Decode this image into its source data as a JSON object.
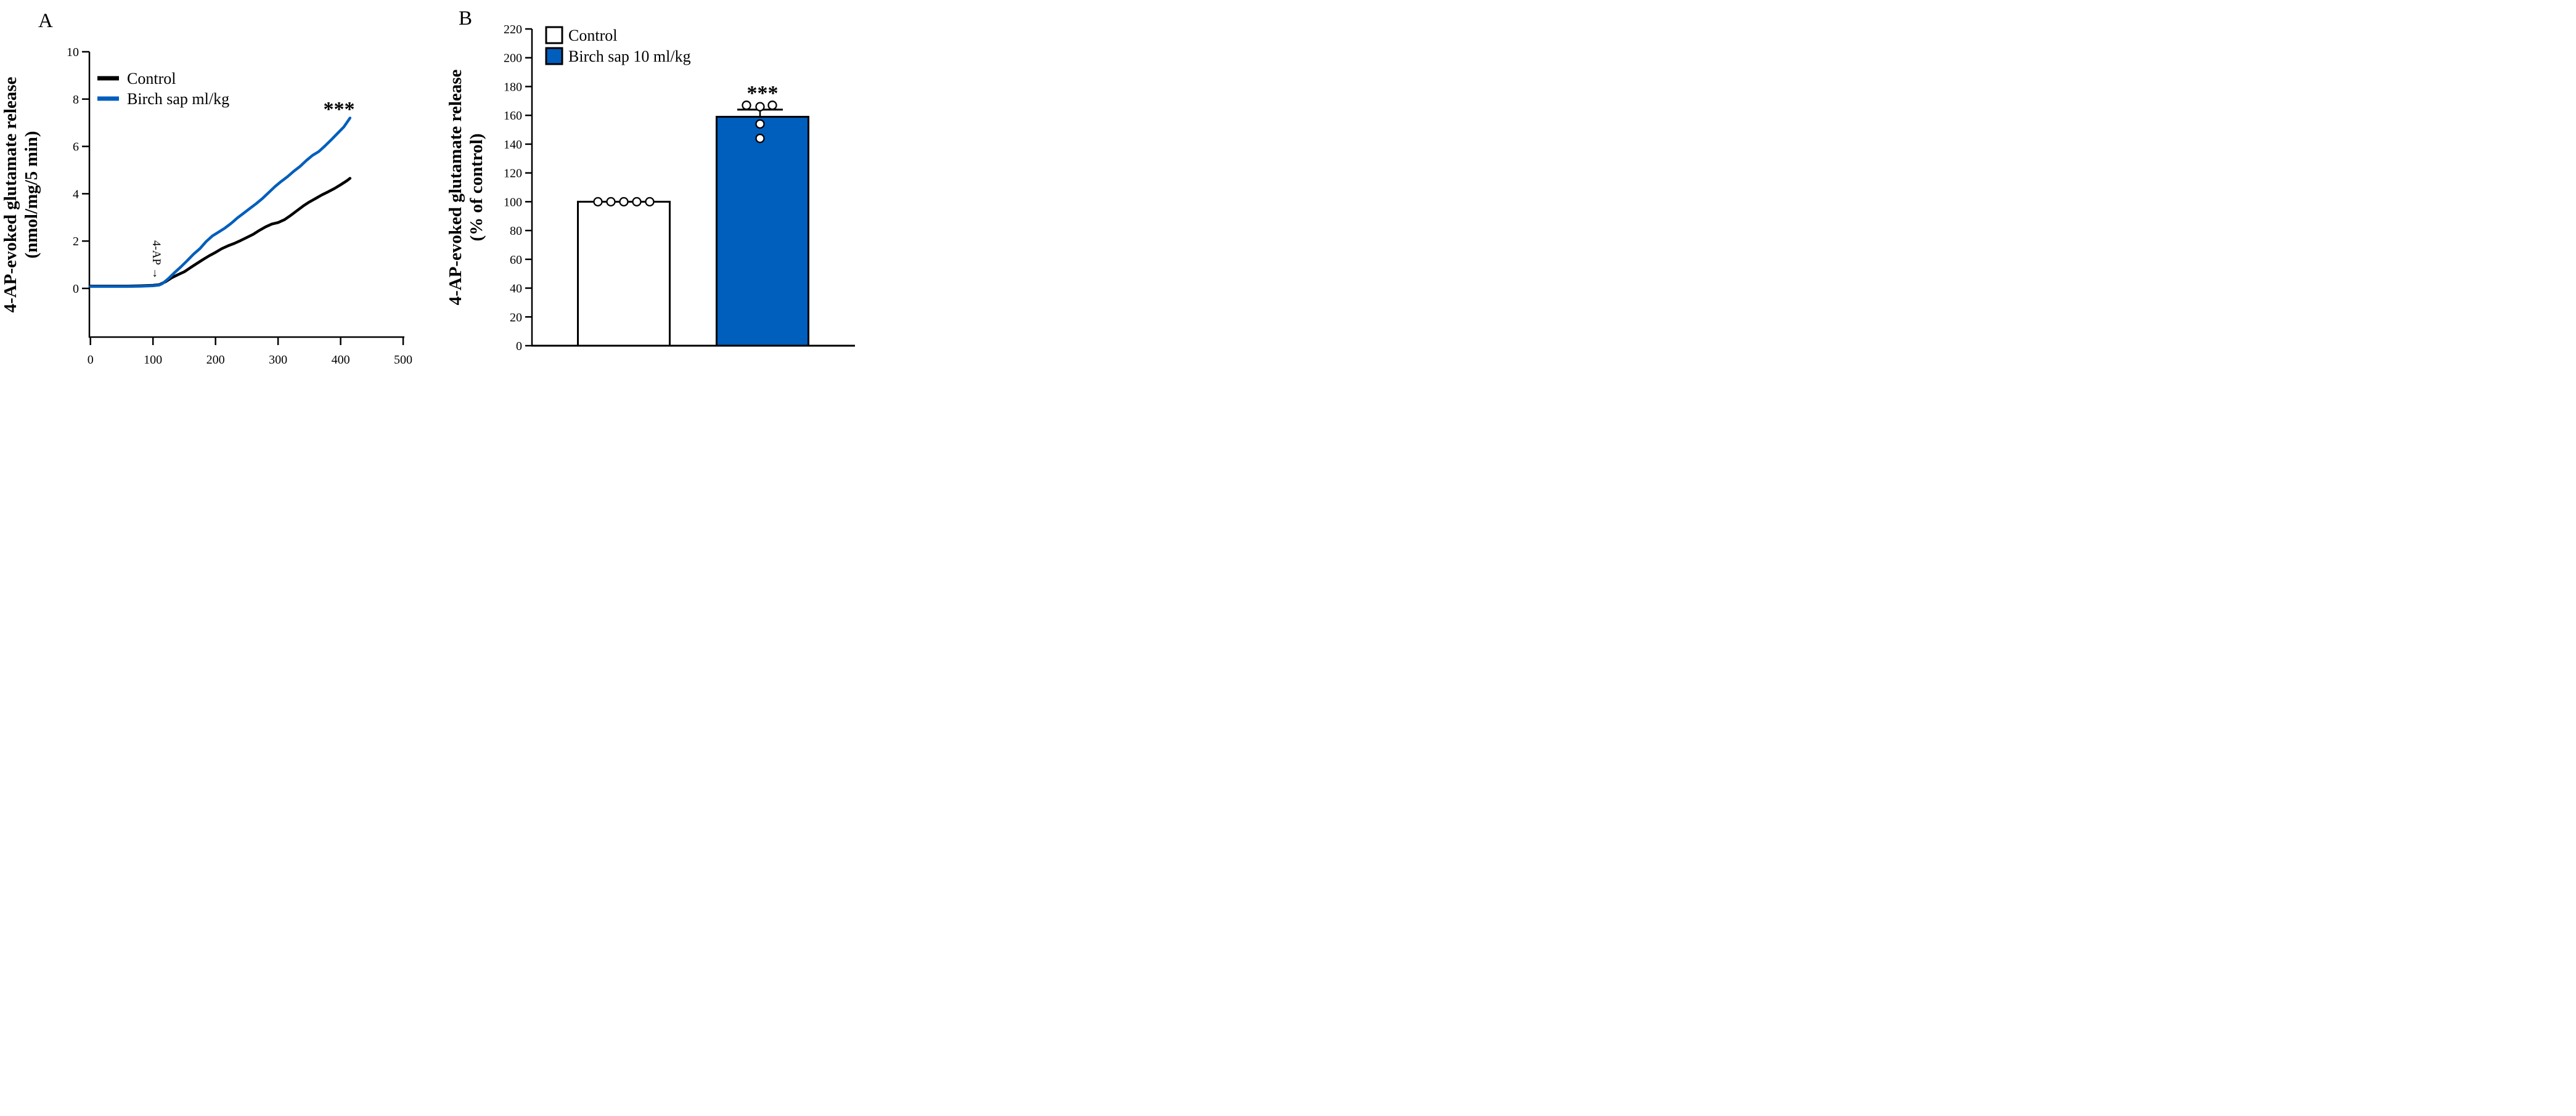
{
  "panel_a": {
    "letter": "A",
    "ylabel_line1": "4-AP-evoked glutamate release",
    "ylabel_line2": "(nmol/mg/5 min)",
    "annotation_4ap": "4-AP →",
    "significance": "***"
  },
  "panel_b": {
    "letter": "B",
    "ylabel_line1": "4-AP-evoked glutamate release",
    "ylabel_line2": "(% of control)",
    "significance": "***"
  },
  "chart_data": [
    {
      "type": "line",
      "panel": "A",
      "ylabel": "4-AP-evoked glutamate release (nmol/mg/5 min)",
      "xlabel": "",
      "xlim": [
        0,
        500
      ],
      "ylim": [
        0,
        10
      ],
      "xticks": [
        0,
        100,
        200,
        300,
        400,
        500
      ],
      "yticks": [
        0,
        2,
        4,
        6,
        8,
        10
      ],
      "grid": false,
      "legend_position": "inside top-left",
      "annotations": [
        {
          "text": "4-AP →",
          "x": 105,
          "y_top": 2.2,
          "arrow": "down",
          "rotated": true
        },
        {
          "text": "***",
          "x": 400,
          "y": 7.7
        }
      ],
      "series": [
        {
          "name": "Control",
          "color": "#000000",
          "x": [
            0,
            20,
            40,
            60,
            80,
            100,
            110,
            120,
            130,
            140,
            150,
            160,
            170,
            180,
            190,
            200,
            210,
            220,
            230,
            240,
            250,
            260,
            270,
            280,
            290,
            300,
            310,
            320,
            330,
            340,
            350,
            360,
            370,
            380,
            390,
            400,
            410,
            415
          ],
          "y": [
            0.1,
            0.1,
            0.1,
            0.1,
            0.11,
            0.13,
            0.16,
            0.28,
            0.45,
            0.58,
            0.7,
            0.88,
            1.05,
            1.22,
            1.38,
            1.52,
            1.68,
            1.8,
            1.9,
            2.02,
            2.15,
            2.28,
            2.45,
            2.6,
            2.72,
            2.78,
            2.9,
            3.08,
            3.28,
            3.48,
            3.65,
            3.8,
            3.95,
            4.08,
            4.22,
            4.38,
            4.55,
            4.65
          ]
        },
        {
          "name": "Birch sap ml/kg",
          "color": "#005EBD",
          "x": [
            0,
            20,
            40,
            60,
            80,
            100,
            110,
            115,
            125,
            135,
            145,
            155,
            165,
            175,
            185,
            195,
            205,
            215,
            225,
            235,
            245,
            255,
            265,
            275,
            285,
            295,
            305,
            315,
            325,
            335,
            345,
            355,
            365,
            375,
            385,
            395,
            405,
            415
          ],
          "y": [
            0.08,
            0.08,
            0.08,
            0.08,
            0.09,
            0.11,
            0.14,
            0.2,
            0.42,
            0.68,
            0.92,
            1.18,
            1.45,
            1.68,
            1.98,
            2.22,
            2.38,
            2.55,
            2.75,
            2.98,
            3.18,
            3.38,
            3.58,
            3.8,
            4.05,
            4.3,
            4.52,
            4.72,
            4.95,
            5.15,
            5.4,
            5.62,
            5.78,
            6.02,
            6.28,
            6.55,
            6.82,
            7.2
          ]
        }
      ]
    },
    {
      "type": "bar",
      "panel": "B",
      "ylabel": "4-AP-evoked glutamate release (% of control)",
      "xlabel": "",
      "ylim": [
        0,
        220
      ],
      "yticks": [
        0,
        20,
        40,
        60,
        80,
        100,
        120,
        140,
        160,
        180,
        200,
        220
      ],
      "grid": false,
      "legend_position": "inside top-left",
      "categories": [
        "Control",
        "Birch sap 10 ml/kg"
      ],
      "values": [
        100,
        159
      ],
      "bar_colors": [
        "#FFFFFF",
        "#005EBD"
      ],
      "bar_border_color": "#000000",
      "error_plus": [
        0,
        5
      ],
      "scatter": [
        {
          "category": "Control",
          "points": [
            {
              "value": 100,
              "dx": -42
            },
            {
              "value": 100,
              "dx": -21
            },
            {
              "value": 100,
              "dx": 0
            },
            {
              "value": 100,
              "dx": 21
            },
            {
              "value": 100,
              "dx": 42
            }
          ]
        },
        {
          "category": "Birch sap 10 ml/kg",
          "points": [
            {
              "value": 167,
              "dx": -26
            },
            {
              "value": 166,
              "dx": -4
            },
            {
              "value": 167,
              "dx": 16
            },
            {
              "value": 154,
              "dx": -4
            },
            {
              "value": 144,
              "dx": -4
            }
          ]
        }
      ],
      "significance": {
        "label": "***",
        "on_category": "Birch sap 10 ml/kg"
      }
    }
  ]
}
